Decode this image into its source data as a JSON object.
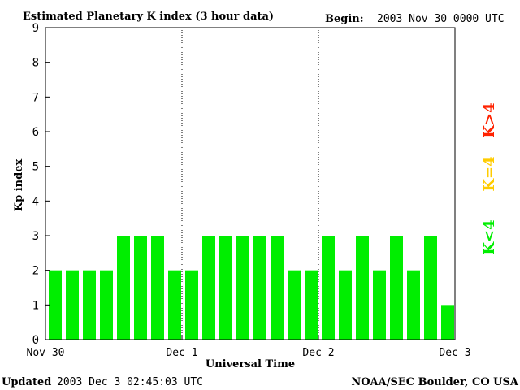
{
  "header": {
    "title": "Estimated Planetary K index (3 hour data)",
    "begin_label": "Begin:",
    "begin_value": "2003 Nov 30 0000 UTC"
  },
  "footer": {
    "updated_label": "Updated",
    "updated_value": "2003 Dec  3 02:45:03 UTC",
    "source": "NOAA/SEC Boulder, CO USA"
  },
  "legend": [
    {
      "label": "K<4",
      "color": "#00ee00"
    },
    {
      "label": "K=4",
      "color": "#ffcc00"
    },
    {
      "label": "K>4",
      "color": "#ff2200"
    }
  ],
  "chart_data": {
    "type": "bar",
    "title": "Estimated Planetary K index (3 hour data)",
    "xlabel": "Universal Time",
    "ylabel": "Kp index",
    "ylim": [
      0,
      9
    ],
    "yticks": [
      "0",
      "1",
      "2",
      "3",
      "4",
      "5",
      "6",
      "7",
      "8",
      "9"
    ],
    "x_tick_labels": [
      "Nov 30",
      "Dec 1",
      "Dec 2",
      "Dec 3"
    ],
    "bar_color": "#00ee00",
    "values": [
      2,
      2,
      2,
      2,
      3,
      3,
      3,
      2,
      2,
      3,
      3,
      3,
      3,
      3,
      2,
      2,
      3,
      2,
      3,
      2,
      3,
      2,
      3,
      1
    ]
  }
}
